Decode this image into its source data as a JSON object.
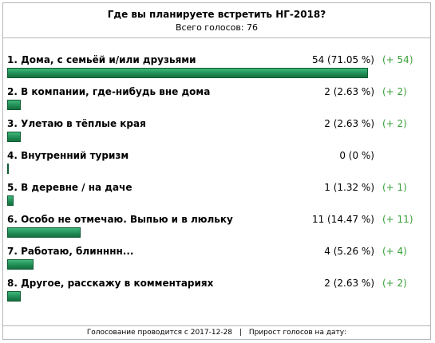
{
  "poll": {
    "title": "Где вы планируете встретить НГ-2018?",
    "total": "Всего голосов: 76"
  },
  "items": [
    {
      "label": "1. Дома, с семьёй и/или друзьями",
      "count": "54 (71.05 %)",
      "delta": "(+ 54)",
      "share": 0.7105
    },
    {
      "label": "2. В компании, где-нибудь вне дома",
      "count": "2 (2.63 %)",
      "delta": "(+ 2)",
      "share": 0.0263
    },
    {
      "label": "3. Улетаю в тёплые края",
      "count": "2 (2.63 %)",
      "delta": "(+ 2)",
      "share": 0.0263
    },
    {
      "label": "4. Внутренний туризм",
      "count": "0 (0 %)",
      "delta": "",
      "share": 0
    },
    {
      "label": "5. В деревне / на даче",
      "count": "1 (1.32 %)",
      "delta": "(+ 1)",
      "share": 0.0132
    },
    {
      "label": "6. Особо не отмечаю. Выпью и в люльку",
      "count": "11 (14.47 %)",
      "delta": "(+ 11)",
      "share": 0.1447
    },
    {
      "label": "7. Работаю, блинннн...",
      "count": "4 (5.26 %)",
      "delta": "(+ 4)",
      "share": 0.0526
    },
    {
      "label": "8. Другое, расскажу в комментариях",
      "count": "2 (2.63 %)",
      "delta": "(+ 2)",
      "share": 0.0263
    }
  ],
  "footer": {
    "started": "Голосование проводится с 2017-12-28",
    "separator": "|",
    "growth": "Прирост голосов на дату:"
  },
  "colors": {
    "bar": "#1f8a53",
    "delta": "#3aa13a",
    "border": "#b5b5b5"
  }
}
